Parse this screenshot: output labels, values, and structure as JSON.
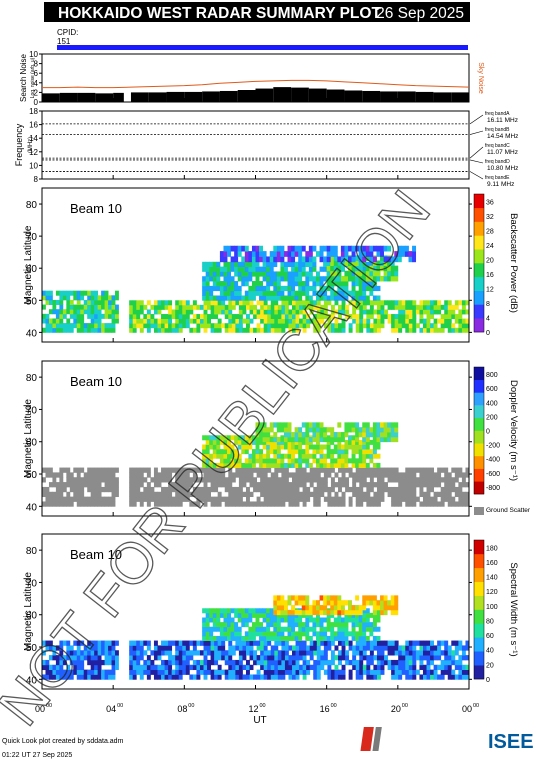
{
  "header": {
    "title": "HOKKAIDO WEST RADAR SUMMARY PLOT",
    "date": "26 Sep 2025"
  },
  "cpid": {
    "label": "CPID:",
    "value": "151",
    "bar_color": "#1a1aff"
  },
  "watermark": "NOT FOR PUBLICATION",
  "footer": {
    "line1": "Quick Look plot created by sddata.adm",
    "line2": "01:22 UT 27 Sep 2025",
    "logo": "ISEE"
  },
  "chart_data": [
    {
      "type": "area",
      "panel": "search-noise",
      "ylabel": "Search Noise",
      "ylabel_units": "Log. noise (arb. u)",
      "ylim": [
        0,
        10
      ],
      "yticks": [
        0,
        2,
        4,
        6,
        8,
        10
      ],
      "series_label": "Sky Noise",
      "series_label_color": "#e05a1a",
      "x": [
        0,
        1,
        2,
        3,
        4,
        4.6,
        5,
        6,
        7,
        8,
        9,
        10,
        11,
        12,
        13,
        14,
        15,
        16,
        17,
        18,
        19,
        20,
        21,
        22,
        23,
        24
      ],
      "sky_noise": [
        3.0,
        3.0,
        3.1,
        3.0,
        3.0,
        null,
        3.1,
        3.2,
        3.3,
        3.4,
        3.6,
        3.9,
        4.1,
        4.3,
        4.4,
        4.5,
        4.5,
        4.4,
        4.2,
        4.0,
        3.8,
        3.6,
        3.4,
        3.3,
        3.2,
        3.1
      ],
      "search_noise": [
        1.8,
        1.9,
        1.9,
        1.8,
        1.9,
        null,
        2.0,
        2.0,
        2.1,
        2.1,
        2.2,
        2.3,
        2.5,
        2.8,
        3.1,
        3.0,
        2.8,
        2.6,
        2.4,
        2.3,
        2.2,
        2.2,
        2.1,
        2.0,
        2.0,
        1.9
      ]
    },
    {
      "type": "line",
      "panel": "frequency",
      "ylabel": "Frequency",
      "ylabel_units": "(MHz)",
      "ylim": [
        8,
        18
      ],
      "yticks": [
        8,
        10,
        12,
        14,
        16,
        18
      ],
      "x": [
        0,
        24
      ],
      "bands": [
        {
          "name": "freq bandA",
          "mhz": 16.11,
          "label": "16.11 MHz"
        },
        {
          "name": "freq bandB",
          "mhz": 14.54,
          "label": "14.54 MHz"
        },
        {
          "name": "freq bandC",
          "mhz": 11.07,
          "label": "11.07 MHz"
        },
        {
          "name": "freq bandD",
          "mhz": 10.8,
          "label": "10.80 MHz"
        },
        {
          "name": "freq bandE",
          "mhz": 9.11,
          "label": "9.11 MHz"
        }
      ]
    },
    {
      "type": "heatmap",
      "panel": "power",
      "beam": "Beam 10",
      "ylabel": "Magnetic Latitude",
      "ylim": [
        37,
        85
      ],
      "yticks": [
        40,
        50,
        60,
        70,
        80
      ],
      "colorbar": {
        "label": "Backscatter Power (dB)",
        "ticks": [
          0,
          4,
          8,
          12,
          16,
          20,
          24,
          28,
          32,
          36
        ],
        "range": [
          0,
          38
        ]
      },
      "regions": [
        {
          "t0": 0,
          "t1": 4.3,
          "lat0": 40,
          "lat1": 53,
          "value": 14
        },
        {
          "t0": 4.9,
          "t1": 24,
          "lat0": 40,
          "lat1": 50,
          "value": 18
        },
        {
          "t0": 9,
          "t1": 19,
          "lat0": 50,
          "lat1": 62,
          "value": 12
        },
        {
          "t0": 16,
          "t1": 20,
          "lat0": 56,
          "lat1": 64,
          "value": 16
        },
        {
          "t0": 10,
          "t1": 21,
          "lat0": 62,
          "lat1": 67,
          "value": 6
        }
      ]
    },
    {
      "type": "heatmap",
      "panel": "velocity",
      "beam": "Beam 10",
      "ylabel": "Magnetic Latitude",
      "ylim": [
        37,
        85
      ],
      "yticks": [
        40,
        50,
        60,
        70,
        80
      ],
      "colorbar": {
        "label": "Doppler Velocity (m s⁻¹)",
        "ticks": [
          800,
          600,
          400,
          200,
          0,
          -200,
          -400,
          -600,
          -800
        ],
        "range": [
          -900,
          900
        ],
        "ground_scatter_label": "Ground Scatter"
      },
      "regions": [
        {
          "t0": 0,
          "t1": 4.3,
          "lat0": 40,
          "lat1": 52,
          "value": "ground"
        },
        {
          "t0": 4.9,
          "t1": 24,
          "lat0": 40,
          "lat1": 52,
          "value": "ground"
        },
        {
          "t0": 9,
          "t1": 19,
          "lat0": 52,
          "lat1": 62,
          "value": -100
        },
        {
          "t0": 12,
          "t1": 20,
          "lat0": 60,
          "lat1": 66,
          "value": 0
        }
      ]
    },
    {
      "type": "heatmap",
      "panel": "width",
      "beam": "Beam 10",
      "ylabel": "Magnetic Latitude",
      "xlabel": "UT",
      "xticks": [
        "00",
        "04",
        "08",
        "12",
        "16",
        "20",
        "00"
      ],
      "tick_superscript": "00",
      "ylim": [
        37,
        85
      ],
      "yticks": [
        40,
        50,
        60,
        70,
        80
      ],
      "colorbar": {
        "label": "Spectral Width (m s⁻¹)",
        "ticks": [
          0,
          20,
          40,
          60,
          80,
          100,
          120,
          140,
          160,
          180
        ],
        "range": [
          0,
          190
        ]
      },
      "regions": [
        {
          "t0": 0,
          "t1": 4.3,
          "lat0": 40,
          "lat1": 52,
          "value": 20
        },
        {
          "t0": 4.9,
          "t1": 24,
          "lat0": 40,
          "lat1": 52,
          "value": 25
        },
        {
          "t0": 9,
          "t1": 19,
          "lat0": 52,
          "lat1": 62,
          "value": 60
        },
        {
          "t0": 13,
          "t1": 20,
          "lat0": 60,
          "lat1": 66,
          "value": 120
        }
      ]
    }
  ]
}
